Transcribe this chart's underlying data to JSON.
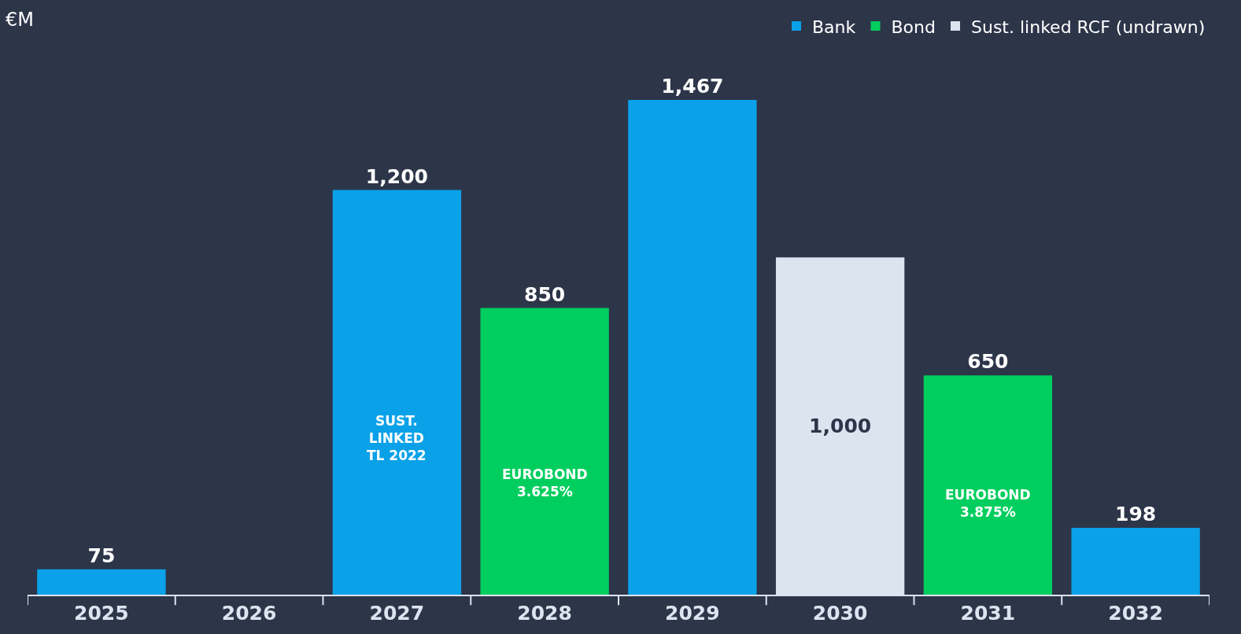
{
  "chart_data": {
    "type": "bar",
    "ylabel": "€M",
    "categories": [
      "2025",
      "2026",
      "2027",
      "2028",
      "2029",
      "2030",
      "2031",
      "2032"
    ],
    "series": [
      {
        "name": "Bank",
        "color": "#0aa1e8",
        "values": [
          75,
          null,
          1200,
          null,
          1467,
          null,
          null,
          198
        ],
        "value_labels": [
          "75",
          null,
          "1,200",
          null,
          "1,467",
          null,
          null,
          "198"
        ]
      },
      {
        "name": "Bond",
        "color": "#00ce5e",
        "values": [
          null,
          null,
          null,
          850,
          null,
          null,
          650,
          null
        ],
        "value_labels": [
          null,
          null,
          null,
          "850",
          null,
          null,
          "650",
          null
        ]
      },
      {
        "name": "Sust. linked RCF (undrawn)",
        "color": "#dce4f0",
        "values": [
          null,
          null,
          null,
          null,
          null,
          1000,
          null,
          null
        ],
        "value_labels": [
          null,
          null,
          null,
          null,
          null,
          "1,000",
          null,
          null
        ]
      }
    ],
    "annotations": [
      "SUST.\nLINKED\nTL 2022",
      "EUROBOND\n3.625%",
      "EUROBOND\n3.875%"
    ],
    "legend": "top right",
    "grid": false
  }
}
